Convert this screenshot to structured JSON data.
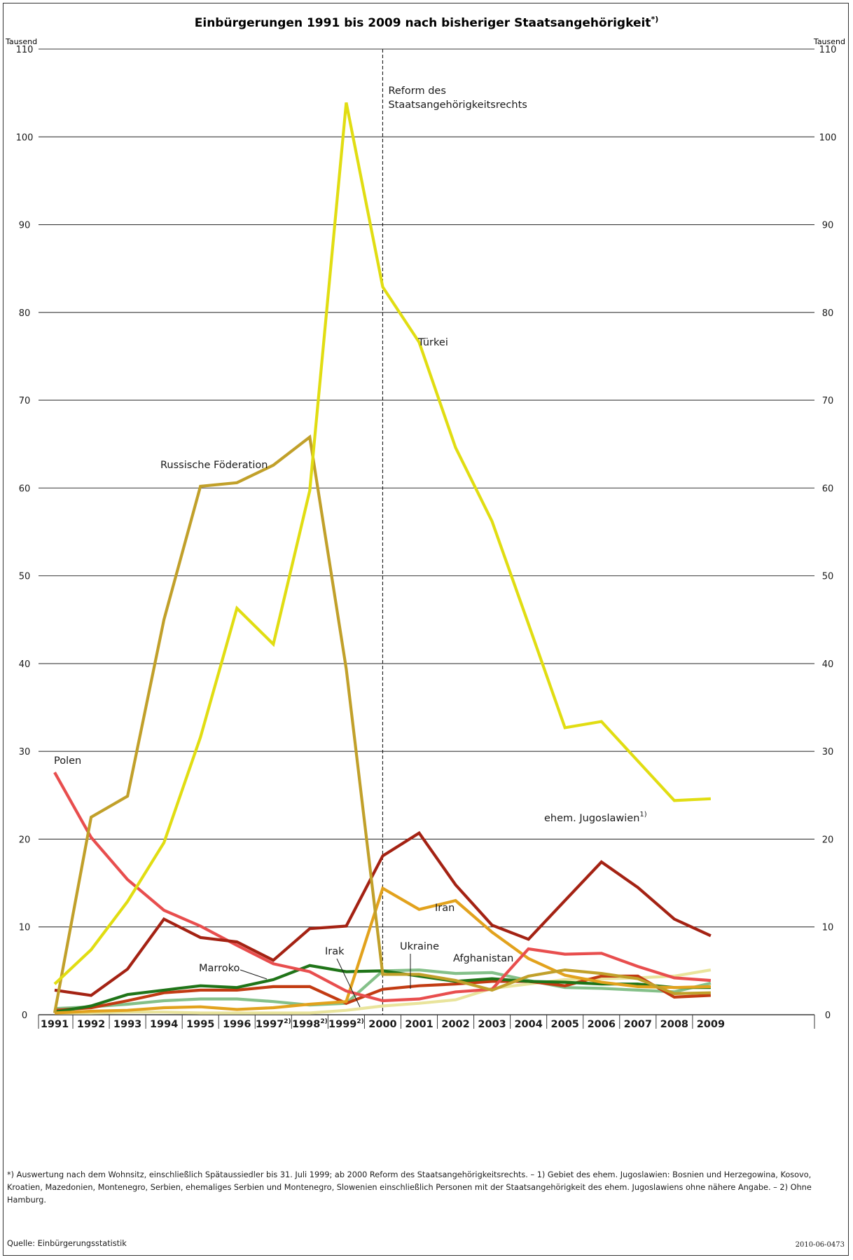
{
  "chart_data": {
    "type": "line",
    "title": "Einbürgerungen 1991 bis 2009 nach bisheriger Staatsangehörigkeit",
    "title_sup": "*)",
    "y_unit_left": "Tausend",
    "y_unit_right": "Tausend",
    "ylim": [
      0,
      110
    ],
    "y_ticks": [
      0,
      10,
      20,
      30,
      40,
      50,
      60,
      70,
      80,
      90,
      100,
      110
    ],
    "grid": "horizontal",
    "x": [
      1991,
      1992,
      1993,
      1994,
      1995,
      1996,
      1997,
      1998,
      1999,
      2000,
      2001,
      2002,
      2003,
      2004,
      2005,
      2006,
      2007,
      2008,
      2009
    ],
    "x_labels": [
      {
        "text": "1991",
        "sup": ""
      },
      {
        "text": "1992",
        "sup": ""
      },
      {
        "text": "1993",
        "sup": ""
      },
      {
        "text": "1994",
        "sup": ""
      },
      {
        "text": "1995",
        "sup": ""
      },
      {
        "text": "1996",
        "sup": ""
      },
      {
        "text": "1997",
        "sup": "2)"
      },
      {
        "text": "1998",
        "sup": "2)"
      },
      {
        "text": "1999",
        "sup": "2)"
      },
      {
        "text": "2000",
        "sup": ""
      },
      {
        "text": "2001",
        "sup": ""
      },
      {
        "text": "2002",
        "sup": ""
      },
      {
        "text": "2003",
        "sup": ""
      },
      {
        "text": "2004",
        "sup": ""
      },
      {
        "text": "2005",
        "sup": ""
      },
      {
        "text": "2006",
        "sup": ""
      },
      {
        "text": "2007",
        "sup": ""
      },
      {
        "text": "2008",
        "sup": ""
      },
      {
        "text": "2009",
        "sup": ""
      }
    ],
    "reform_line": {
      "x": 2000,
      "label_lines": [
        "Reform des",
        "Staatsangehörigkeitsrechts"
      ]
    },
    "series": [
      {
        "name": "Türkei",
        "color": "#e1dd12",
        "values": [
          3.5,
          7.4,
          12.9,
          19.6,
          31.6,
          46.3,
          42.2,
          59.7,
          103.9,
          82.9,
          76.6,
          64.6,
          56.2,
          44.5,
          32.7,
          33.4,
          28.9,
          24.4,
          24.6
        ]
      },
      {
        "name": "Russische Föderation",
        "color": "#c1a02a",
        "values": [
          0.2,
          22.5,
          24.9,
          45.0,
          60.2,
          60.6,
          62.6,
          65.8,
          39.4,
          4.6,
          4.6,
          3.9,
          2.8,
          4.4,
          5.1,
          4.7,
          4.1,
          2.4,
          2.5
        ]
      },
      {
        "name": "Polen",
        "color": "#e84e4e",
        "values": [
          27.6,
          20.2,
          15.4,
          11.9,
          10.1,
          7.9,
          5.8,
          4.9,
          2.7,
          1.6,
          1.8,
          2.6,
          2.9,
          7.5,
          6.9,
          7.0,
          5.5,
          4.2,
          3.9
        ]
      },
      {
        "name": "ehem. Jugoslawien",
        "sup": "1)",
        "color": "#a42213",
        "values": [
          2.8,
          2.2,
          5.2,
          10.9,
          8.8,
          8.3,
          6.2,
          9.8,
          10.1,
          18.1,
          20.7,
          14.8,
          10.2,
          8.6,
          13.0,
          17.4,
          14.5,
          10.9,
          9.0
        ]
      },
      {
        "name": "Iran",
        "color": "#e2a21d",
        "values": [
          0.2,
          0.4,
          0.5,
          0.8,
          0.9,
          0.6,
          0.8,
          1.2,
          1.5,
          14.4,
          12.0,
          13.0,
          9.4,
          6.4,
          4.5,
          3.7,
          3.2,
          3.1,
          3.2
        ]
      },
      {
        "name": "Marroko",
        "color": "#1f7418",
        "values": [
          0.3,
          1.0,
          2.3,
          2.8,
          3.3,
          3.1,
          4.0,
          5.6,
          4.9,
          5.0,
          4.4,
          3.8,
          4.1,
          3.8,
          3.7,
          3.5,
          3.5,
          3.1,
          3.1
        ]
      },
      {
        "name": "Ukraine",
        "color": "#84c089",
        "values": [
          0.7,
          0.9,
          1.2,
          1.6,
          1.8,
          1.8,
          1.5,
          1.1,
          1.3,
          5.0,
          5.1,
          4.7,
          4.8,
          3.9,
          3.1,
          3.0,
          2.8,
          2.6,
          3.6
        ]
      },
      {
        "name": "Afghanistan",
        "color": "#c23b12",
        "values": [
          0.5,
          0.8,
          1.6,
          2.5,
          2.8,
          2.8,
          3.2,
          3.2,
          1.3,
          2.9,
          3.3,
          3.5,
          3.8,
          3.8,
          3.3,
          4.4,
          4.4,
          2.0,
          2.2
        ]
      },
      {
        "name": "Irak",
        "color": "#e9e49c",
        "values": [
          0.2,
          0.2,
          0.3,
          0.3,
          0.2,
          0.2,
          0.2,
          0.2,
          0.5,
          1.0,
          1.3,
          1.7,
          3.0,
          3.5,
          4.0,
          4.1,
          4.2,
          4.4,
          5.1
        ]
      }
    ],
    "annotations": [
      {
        "text": "Türkei"
      },
      {
        "text": "Russische Föderation"
      },
      {
        "text": "Polen"
      },
      {
        "text": "ehem. Jugoslawien",
        "sup": "1)"
      },
      {
        "text": "Iran"
      },
      {
        "text": "Marroko"
      },
      {
        "text": "Irak"
      },
      {
        "text": "Ukraine"
      },
      {
        "text": "Afghanistan"
      }
    ]
  },
  "footnote": "*) Auswertung nach dem Wohnsitz, einschließlich Spätaussiedler bis 31. Juli 1999; ab 2000 Reform des Staatsangehörigkeitsrechts. – 1) Gebiet des ehem. Jugoslawien: Bosnien und Herzegowina, Kosovo, Kroatien, Mazedonien, Montenegro, Serbien, ehemaliges Serbien und Montenegro, Slowenien einschließlich Personen mit der Staatsangehörigkeit des ehem. Jugoslawiens ohne nähere Angabe. – 2) Ohne Hamburg.",
  "source": "Quelle: Einbürgerungsstatistik",
  "code": "2010-06-0473"
}
